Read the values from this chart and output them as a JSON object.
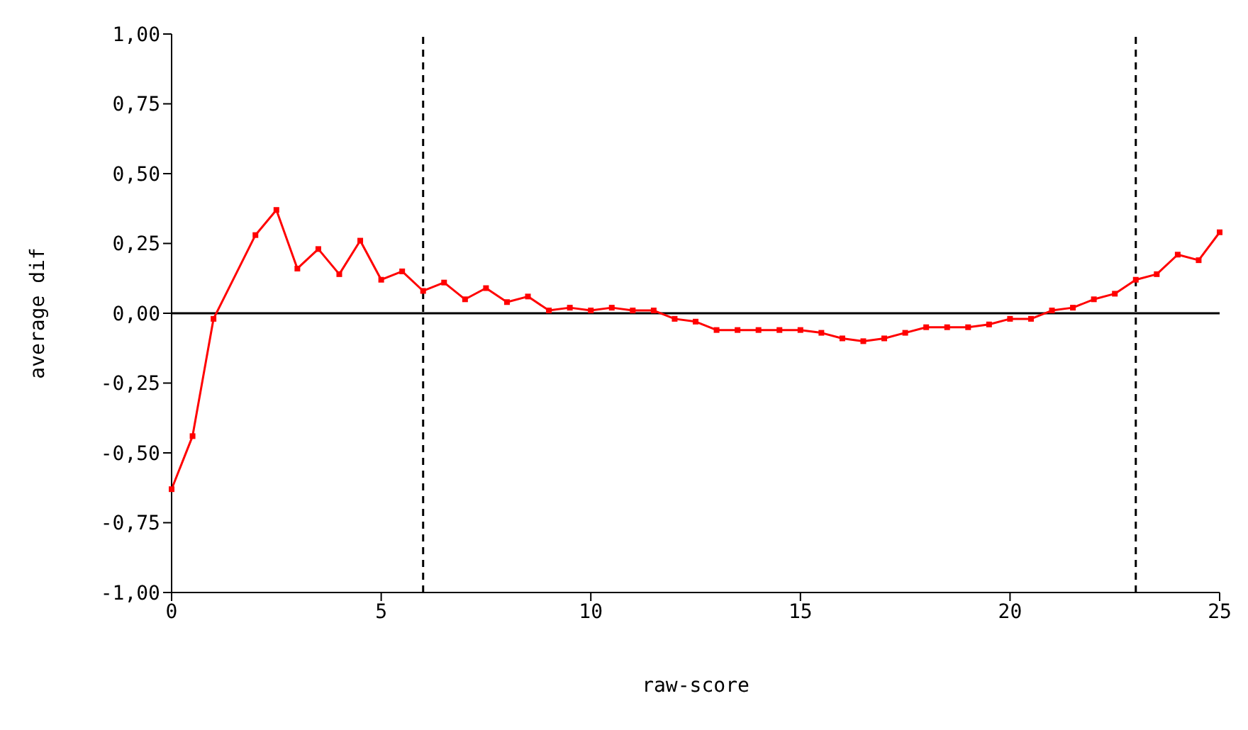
{
  "chart_data": {
    "type": "line",
    "xlabel": "raw-score",
    "ylabel": "average dif",
    "x": [
      0,
      0.5,
      1,
      2,
      2.5,
      3,
      3.5,
      4,
      4.5,
      5,
      5.5,
      6,
      6.5,
      7,
      7.5,
      8,
      8.5,
      9,
      9.5,
      10,
      10.5,
      11,
      11.5,
      12,
      12.5,
      13,
      13.5,
      14,
      14.5,
      15,
      15.5,
      16,
      16.5,
      17,
      17.5,
      18,
      18.5,
      19,
      19.5,
      20,
      20.5,
      21,
      21.5,
      22,
      22.5,
      23,
      23.5,
      24,
      24.5,
      25
    ],
    "series": [
      {
        "color": "#ff0000",
        "values": [
          -0.63,
          -0.44,
          -0.02,
          0.28,
          0.37,
          0.16,
          0.23,
          0.14,
          0.26,
          0.12,
          0.15,
          0.08,
          0.11,
          0.05,
          0.09,
          0.04,
          0.06,
          0.01,
          0.02,
          0.01,
          0.02,
          0.01,
          0.01,
          -0.02,
          -0.03,
          -0.06,
          -0.06,
          -0.06,
          -0.06,
          -0.06,
          -0.07,
          -0.09,
          -0.1,
          -0.09,
          -0.07,
          -0.05,
          -0.05,
          -0.05,
          -0.04,
          -0.02,
          -0.02,
          0.01,
          0.02,
          0.05,
          0.07,
          0.12,
          0.14,
          0.21,
          0.19,
          0.29
        ]
      }
    ],
    "xlim": [
      0,
      25
    ],
    "xticks": [
      0,
      5,
      10,
      15,
      20,
      25
    ],
    "ylim": [
      -1,
      1
    ],
    "yticks": [
      {
        "value": -1,
        "label": "-1,00"
      },
      {
        "value": -0.75,
        "label": "-0,75"
      },
      {
        "value": -0.5,
        "label": "-0,50"
      },
      {
        "value": -0.25,
        "label": "-0,25"
      },
      {
        "value": 0,
        "label": "0,00"
      },
      {
        "value": 0.25,
        "label": "0,25"
      },
      {
        "value": 0.5,
        "label": "0,50"
      },
      {
        "value": 0.75,
        "label": "0,75"
      },
      {
        "value": 1,
        "label": "1,00"
      }
    ],
    "ref_lines": [
      {
        "axis": "y",
        "value": 0,
        "color": "#000000",
        "line_style": "solid"
      },
      {
        "axis": "x",
        "value": 6,
        "color": "#000000",
        "line_style": "dashed"
      },
      {
        "axis": "x",
        "value": 23,
        "color": "#000000",
        "line_style": "dashed"
      }
    ],
    "marker": "square",
    "line_style": "solid",
    "grid": false,
    "legend": false
  }
}
